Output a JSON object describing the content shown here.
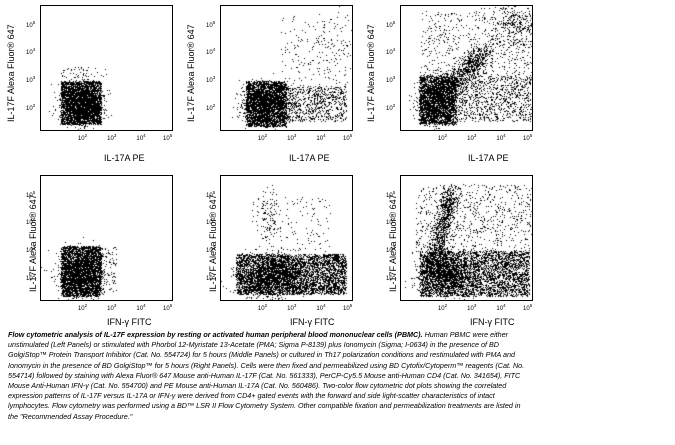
{
  "figure": {
    "y_axis_label": "IL-17F Alexa Fluor® 647",
    "x_axis_label_top": "IL-17A PE",
    "x_axis_label_bottom": "IFN-γ FITC",
    "tick_exponents": [
      "2",
      "3",
      "4",
      "5"
    ],
    "tick_base": "10",
    "panels": [
      {
        "row": 1,
        "col": 1,
        "condition": "unstimulated"
      },
      {
        "row": 1,
        "col": 2,
        "condition": "PMA + ionomycin"
      },
      {
        "row": 1,
        "col": 3,
        "condition": "Th17 polarized"
      },
      {
        "row": 2,
        "col": 1,
        "condition": "unstimulated"
      },
      {
        "row": 2,
        "col": 2,
        "condition": "PMA + ionomycin"
      },
      {
        "row": 2,
        "col": 3,
        "condition": "Th17 polarized"
      }
    ]
  },
  "caption": {
    "title": "Flow cytometric analysis of IL-17F expression by resting or activated human peripheral blood mononuclear cells (PBMC).",
    "body": "Human PBMC were either unstimulated (Left Panels) or stimulated with Phorbol 12-Myristate 13-Acetate (PMA; Sigma P-8139) plus Ionomycin (Sigma; I-0634) in the presence of BD GolgiStop™ Protein Transport Inhibitor (Cat. No. 554724) for 5 hours (Middle Panels) or cultured in Th17 polarization conditions and restimulated with PMA and Ionomycin in the presence of BD GolgiStop™ for 5 hours (Right Panels). Cells were then fixed and permeabilized using BD Cytofix/Cytoperm™ reagents (Cat. No. 554714) followed by staining with Alexa Fluor® 647 Mouse anti-Human IL-17F (Cat. No. 561333), PerCP-Cy5.5 Mouse anti-Human CD4 (Cat. No. 341654), FITC Mouse Anti-Human IFN-γ (Cat. No. 554700) and PE Mouse anti-Human IL-17A (Cat. No. 560486). Two-color flow cytometric dot plots showing the correlated expression patterns of IL-17F versus IL-17A or IFN-γ were derived from CD4+ gated events with the forward and side light-scatter characteristics of intact lymphocytes. Flow cytometry was performed using a BD™ LSR II Flow Cytometry System. Other compatible fixation and permeabilization treatments are listed in the \"Recommended Assay Procedure.\""
  }
}
